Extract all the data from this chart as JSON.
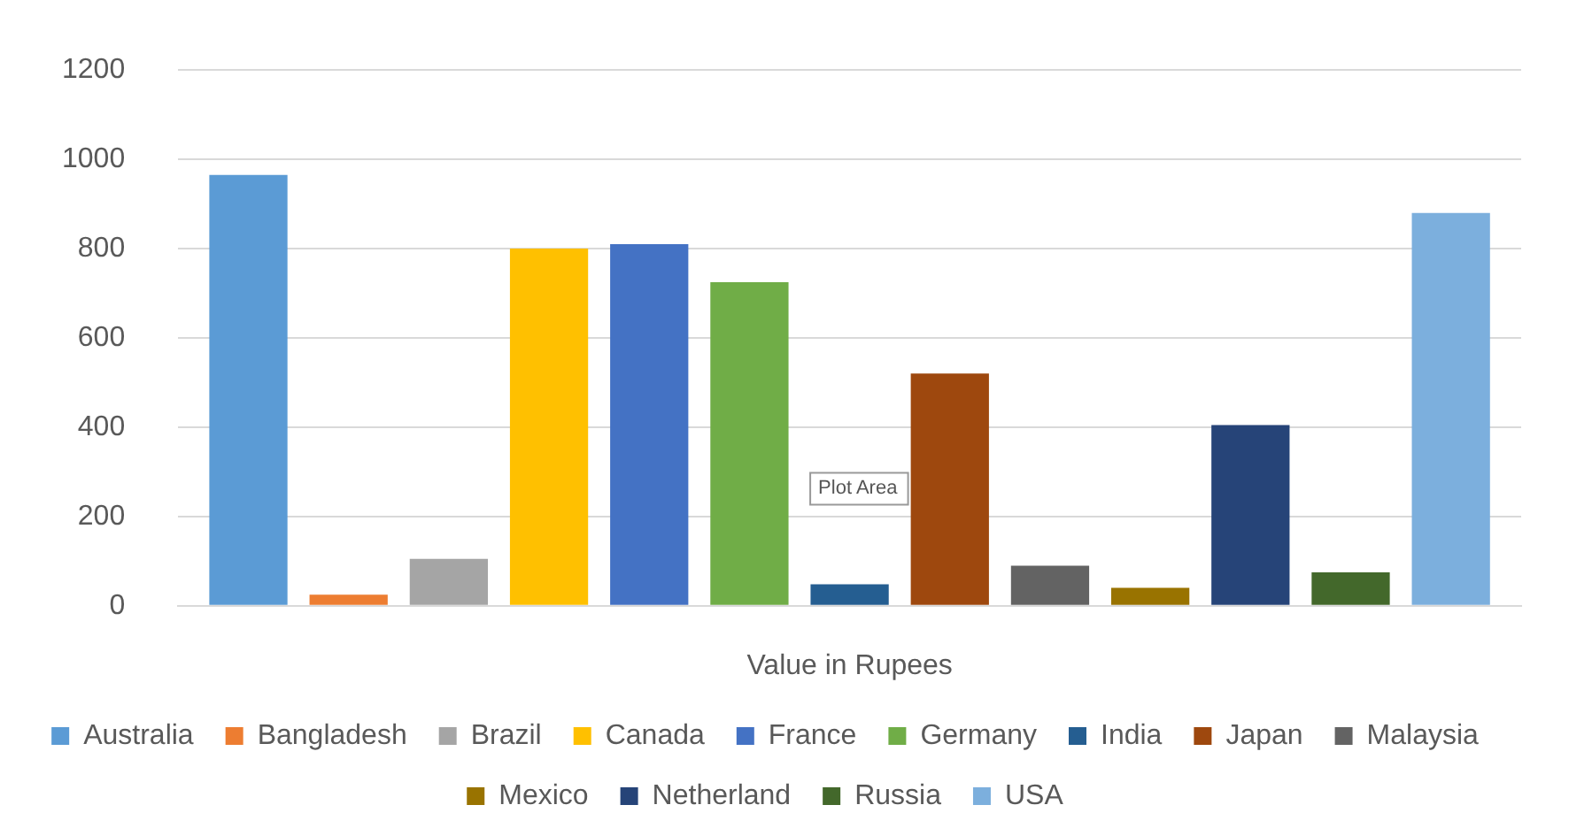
{
  "chart_data": {
    "type": "bar",
    "xlabel": "Value in Rupees",
    "categories": [
      null
    ],
    "ylim": [
      0,
      1200
    ],
    "yticks": [
      0,
      200,
      400,
      600,
      800,
      1000,
      1200
    ],
    "grid": "y",
    "legend": "bottom",
    "annotations": [
      "Plot Area"
    ],
    "series": [
      {
        "name": "Australia",
        "color": "#5b9bd5",
        "values": [
          965
        ]
      },
      {
        "name": "Bangladesh",
        "color": "#ed7d31",
        "values": [
          25
        ]
      },
      {
        "name": "Brazil",
        "color": "#a5a5a5",
        "values": [
          105
        ]
      },
      {
        "name": "Canada",
        "color": "#ffc000",
        "values": [
          800
        ]
      },
      {
        "name": "France",
        "color": "#4472c4",
        "values": [
          810
        ]
      },
      {
        "name": "Germany",
        "color": "#70ad47",
        "values": [
          725
        ]
      },
      {
        "name": "India",
        "color": "#255e91",
        "values": [
          48
        ]
      },
      {
        "name": "Japan",
        "color": "#9e480e",
        "values": [
          520
        ]
      },
      {
        "name": "Malaysia",
        "color": "#636363",
        "values": [
          90
        ]
      },
      {
        "name": "Mexico",
        "color": "#997300",
        "values": [
          40
        ]
      },
      {
        "name": "Netherland",
        "color": "#264478",
        "values": [
          405
        ]
      },
      {
        "name": "Russia",
        "color": "#43682b",
        "values": [
          75
        ]
      },
      {
        "name": "USA",
        "color": "#7cafdd",
        "values": [
          880
        ]
      }
    ]
  }
}
